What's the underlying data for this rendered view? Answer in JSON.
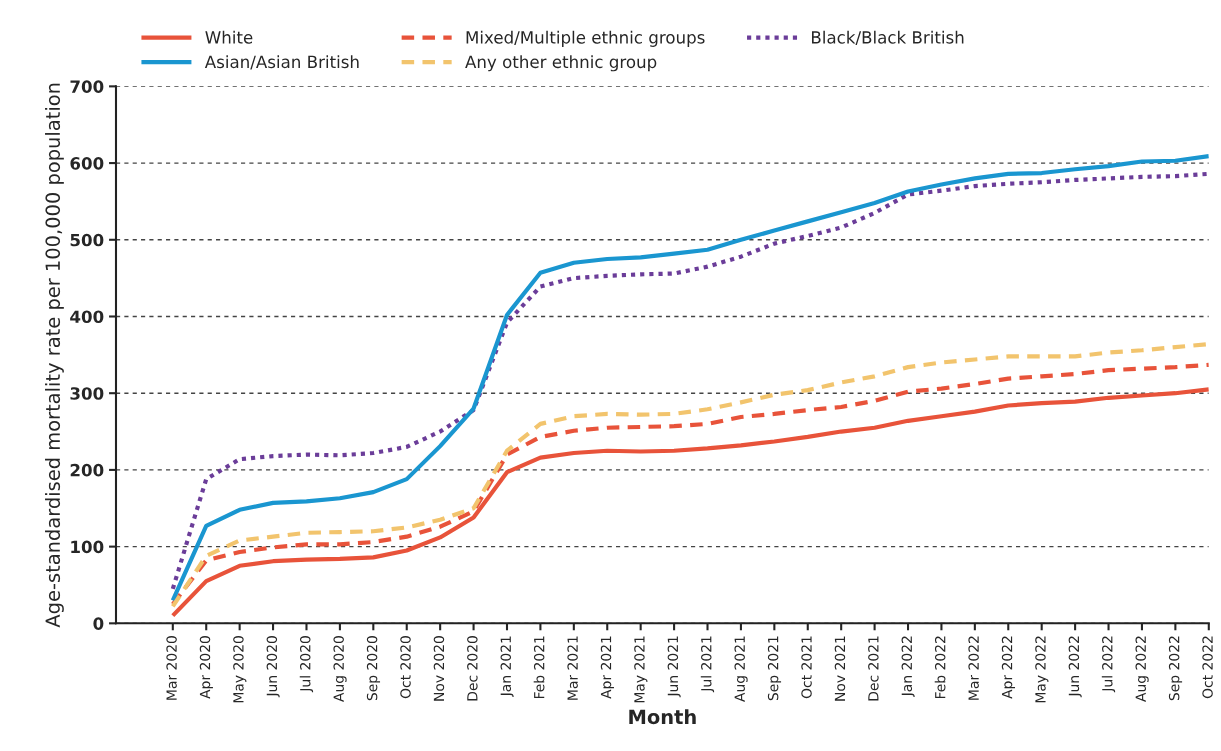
{
  "chart_data": {
    "type": "line",
    "xlabel": "Month",
    "ylabel": "Age-standardised mortality rate per 100,000 population",
    "categories": [
      "Mar 2020",
      "Apr 2020",
      "May 2020",
      "Jun 2020",
      "Jul 2020",
      "Aug 2020",
      "Sep 2020",
      "Oct 2020",
      "Nov 2020",
      "Dec 2020",
      "Jan 2021",
      "Feb 2021",
      "Mar 2021",
      "Apr 2021",
      "May 2021",
      "Jun 2021",
      "Jul 2021",
      "Aug 2021",
      "Sep 2021",
      "Oct 2021",
      "Nov 2021",
      "Dec 2021",
      "Jan 2022",
      "Feb 2022",
      "Mar 2022",
      "Apr 2022",
      "May 2022",
      "Jun 2022",
      "Jul 2022",
      "Aug 2022",
      "Sep 2022",
      "Oct 2022"
    ],
    "series": [
      {
        "name": "White",
        "color": "#e8533a",
        "line_style": "solid",
        "values": [
          10,
          55,
          75,
          81,
          83,
          84,
          86,
          95,
          112,
          138,
          197,
          216,
          222,
          225,
          224,
          225,
          228,
          232,
          237,
          243,
          250,
          255,
          264,
          270,
          276,
          284,
          287,
          289,
          294,
          297,
          300,
          305
        ]
      },
      {
        "name": "Mixed/Multiple ethnic groups",
        "color": "#e8533a",
        "line_style": "dashed",
        "values": [
          25,
          82,
          93,
          99,
          103,
          103,
          106,
          113,
          126,
          146,
          220,
          243,
          251,
          255,
          256,
          257,
          260,
          269,
          273,
          278,
          282,
          290,
          302,
          306,
          312,
          319,
          322,
          325,
          330,
          332,
          334,
          337
        ]
      },
      {
        "name": "Black/Black British",
        "color": "#6b3d99",
        "line_style": "dotted",
        "values": [
          45,
          188,
          214,
          218,
          220,
          219,
          222,
          230,
          250,
          278,
          392,
          439,
          450,
          453,
          455,
          456,
          465,
          478,
          495,
          505,
          516,
          535,
          559,
          564,
          570,
          573,
          575,
          578,
          580,
          582,
          583,
          586
        ]
      },
      {
        "name": "Asian/Asian British",
        "color": "#1a96d0",
        "line_style": "solid",
        "values": [
          30,
          127,
          148,
          157,
          159,
          163,
          171,
          188,
          231,
          280,
          402,
          457,
          470,
          475,
          477,
          482,
          487,
          500,
          512,
          524,
          536,
          548,
          563,
          572,
          580,
          586,
          587,
          592,
          596,
          602,
          603,
          609
        ]
      },
      {
        "name": "Any other ethnic group",
        "color": "#f2c46d",
        "line_style": "dashed",
        "values": [
          22,
          88,
          108,
          113,
          118,
          119,
          120,
          125,
          135,
          150,
          225,
          260,
          270,
          273,
          272,
          273,
          279,
          288,
          298,
          304,
          314,
          322,
          334,
          340,
          344,
          348,
          348,
          348,
          353,
          356,
          360,
          364
        ]
      }
    ],
    "ylim": [
      0,
      700
    ],
    "yticks": [
      0,
      100,
      200,
      300,
      400,
      500,
      600,
      700
    ],
    "grid": "y",
    "legend": "top",
    "marker": "none"
  }
}
